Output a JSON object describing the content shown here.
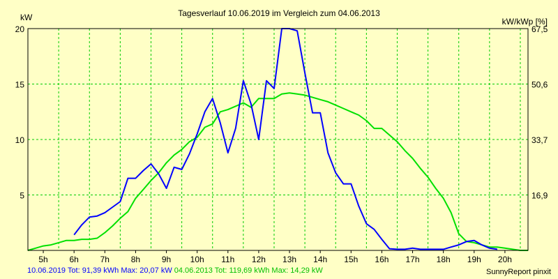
{
  "chart_data": {
    "type": "line",
    "title": "Tagesverlauf 10.06.2019 im Vergleich zum 04.06.2013",
    "ylabel_left": "kW",
    "ylabel_right": "kW/kWp [%]",
    "x_tick_labels": [
      "5h",
      "6h",
      "7h",
      "8h",
      "9h",
      "10h",
      "11h",
      "12h",
      "13h",
      "14h",
      "15h",
      "16h",
      "17h",
      "18h",
      "19h",
      "20h"
    ],
    "xlim": [
      4.5,
      20.75
    ],
    "ylim": [
      0,
      20
    ],
    "y_ticks": [
      5,
      10,
      15,
      20
    ],
    "y_tick_labels": [
      "5",
      "10",
      "15",
      "20"
    ],
    "y_right_ticks": [
      5,
      10,
      15,
      20
    ],
    "y_right_tick_labels": [
      "16,9",
      "33,7",
      "50,6",
      "67,5"
    ],
    "grid": true,
    "legend_position": "bottom",
    "series": [
      {
        "name": "10.06.2019",
        "color": "#0000ff",
        "points": [
          [
            6.0,
            1.4
          ],
          [
            6.25,
            2.3
          ],
          [
            6.5,
            3.0
          ],
          [
            6.75,
            3.1
          ],
          [
            7.0,
            3.4
          ],
          [
            7.25,
            3.9
          ],
          [
            7.5,
            4.4
          ],
          [
            7.75,
            6.5
          ],
          [
            8.0,
            6.5
          ],
          [
            8.25,
            7.2
          ],
          [
            8.5,
            7.8
          ],
          [
            8.75,
            6.9
          ],
          [
            9.0,
            5.6
          ],
          [
            9.25,
            7.5
          ],
          [
            9.5,
            7.3
          ],
          [
            9.75,
            8.7
          ],
          [
            10.0,
            10.5
          ],
          [
            10.25,
            12.5
          ],
          [
            10.5,
            13.7
          ],
          [
            10.75,
            11.5
          ],
          [
            11.0,
            8.8
          ],
          [
            11.25,
            11.0
          ],
          [
            11.5,
            15.3
          ],
          [
            11.75,
            13.2
          ],
          [
            12.0,
            10.0
          ],
          [
            12.25,
            15.3
          ],
          [
            12.5,
            14.6
          ],
          [
            12.75,
            20.0
          ],
          [
            13.0,
            20.0
          ],
          [
            13.25,
            19.8
          ],
          [
            13.5,
            16.0
          ],
          [
            13.75,
            12.4
          ],
          [
            14.0,
            12.4
          ],
          [
            14.25,
            8.8
          ],
          [
            14.5,
            7.0
          ],
          [
            14.75,
            6.0
          ],
          [
            15.0,
            6.0
          ],
          [
            15.25,
            4.0
          ],
          [
            15.5,
            2.4
          ],
          [
            15.75,
            1.9
          ],
          [
            16.0,
            1.0
          ],
          [
            16.25,
            0.15
          ],
          [
            16.5,
            0.1
          ],
          [
            16.75,
            0.1
          ],
          [
            17.0,
            0.2
          ],
          [
            17.25,
            0.1
          ],
          [
            17.5,
            0.1
          ],
          [
            17.75,
            0.1
          ],
          [
            18.0,
            0.1
          ],
          [
            18.25,
            0.3
          ],
          [
            18.5,
            0.5
          ],
          [
            18.75,
            0.8
          ],
          [
            19.0,
            0.9
          ],
          [
            19.25,
            0.5
          ],
          [
            19.5,
            0.2
          ],
          [
            19.75,
            0.1
          ]
        ]
      },
      {
        "name": "04.06.2013",
        "color": "#00e000",
        "points": [
          [
            4.5,
            0.0
          ],
          [
            4.75,
            0.2
          ],
          [
            5.0,
            0.4
          ],
          [
            5.25,
            0.5
          ],
          [
            5.5,
            0.7
          ],
          [
            5.75,
            0.9
          ],
          [
            6.0,
            0.9
          ],
          [
            6.25,
            1.0
          ],
          [
            6.5,
            1.0
          ],
          [
            6.75,
            1.1
          ],
          [
            7.0,
            1.6
          ],
          [
            7.25,
            2.2
          ],
          [
            7.5,
            2.9
          ],
          [
            7.75,
            3.5
          ],
          [
            8.0,
            4.7
          ],
          [
            8.25,
            5.5
          ],
          [
            8.5,
            6.3
          ],
          [
            8.75,
            7.0
          ],
          [
            9.0,
            7.9
          ],
          [
            9.25,
            8.6
          ],
          [
            9.5,
            9.1
          ],
          [
            9.75,
            9.8
          ],
          [
            10.0,
            10.2
          ],
          [
            10.25,
            11.1
          ],
          [
            10.5,
            11.4
          ],
          [
            10.75,
            12.5
          ],
          [
            11.0,
            12.7
          ],
          [
            11.25,
            13.0
          ],
          [
            11.5,
            13.3
          ],
          [
            11.75,
            12.9
          ],
          [
            12.0,
            13.7
          ],
          [
            12.25,
            13.7
          ],
          [
            12.5,
            13.7
          ],
          [
            12.75,
            14.1
          ],
          [
            13.0,
            14.2
          ],
          [
            13.25,
            14.1
          ],
          [
            13.5,
            14.0
          ],
          [
            13.75,
            13.8
          ],
          [
            14.0,
            13.6
          ],
          [
            14.25,
            13.4
          ],
          [
            14.5,
            13.1
          ],
          [
            14.75,
            12.8
          ],
          [
            15.0,
            12.5
          ],
          [
            15.25,
            12.2
          ],
          [
            15.5,
            11.7
          ],
          [
            15.75,
            11.0
          ],
          [
            16.0,
            11.0
          ],
          [
            16.25,
            10.4
          ],
          [
            16.5,
            9.8
          ],
          [
            16.75,
            9.0
          ],
          [
            17.0,
            8.3
          ],
          [
            17.25,
            7.4
          ],
          [
            17.5,
            6.6
          ],
          [
            17.75,
            5.6
          ],
          [
            18.0,
            4.7
          ],
          [
            18.25,
            3.4
          ],
          [
            18.5,
            1.5
          ],
          [
            18.75,
            0.8
          ],
          [
            19.0,
            0.7
          ],
          [
            19.25,
            0.5
          ],
          [
            19.5,
            0.3
          ],
          [
            19.75,
            0.3
          ],
          [
            20.0,
            0.2
          ],
          [
            20.25,
            0.1
          ],
          [
            20.5,
            0.0
          ],
          [
            20.75,
            0.0
          ]
        ]
      }
    ]
  },
  "footer": {
    "series1_text": "10.06.2019 Tot: 91,39 kWh Max: 20,07 kW",
    "series2_text": "04.06.2013 Tot: 119,69 kWh Max: 14,29 kW",
    "brand": "SunnyReport pinxit"
  }
}
